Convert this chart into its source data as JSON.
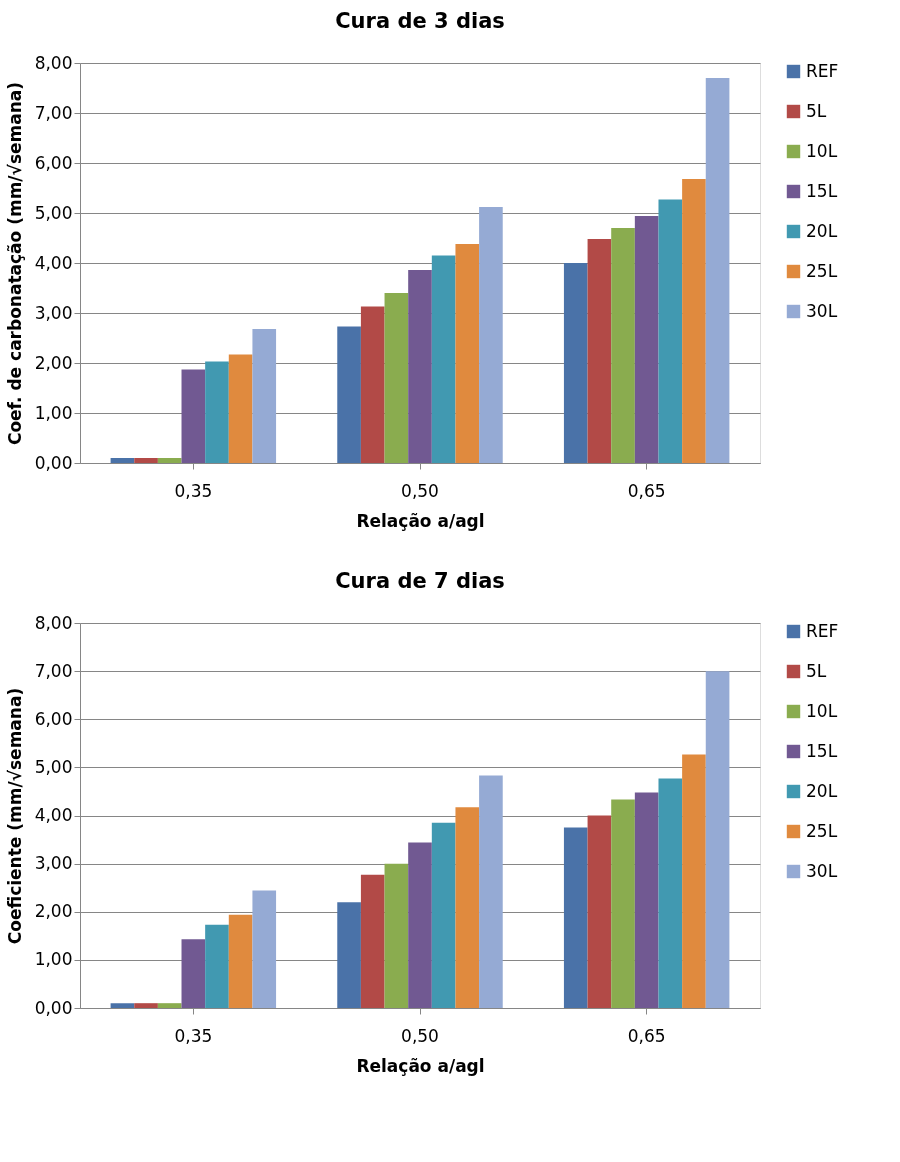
{
  "chart_data": [
    {
      "type": "bar",
      "title": "Cura de 3 dias",
      "xlabel": "Relação a/agl",
      "ylabel": "Coef. de carbonatação (mm/√semana)",
      "categories": [
        "0,35",
        "0,50",
        "0,65"
      ],
      "series": [
        {
          "name": "REF",
          "color": "#4a72a8",
          "values": [
            0.1,
            2.73,
            4.0
          ]
        },
        {
          "name": "5L",
          "color": "#b24a47",
          "values": [
            0.1,
            3.13,
            4.48
          ]
        },
        {
          "name": "10L",
          "color": "#8aac4f",
          "values": [
            0.1,
            3.4,
            4.7
          ]
        },
        {
          "name": "15L",
          "color": "#715992",
          "values": [
            1.87,
            3.86,
            4.94
          ]
        },
        {
          "name": "20L",
          "color": "#4199b1",
          "values": [
            2.03,
            4.15,
            5.27
          ]
        },
        {
          "name": "25L",
          "color": "#e08a3e",
          "values": [
            2.17,
            4.38,
            5.68
          ]
        },
        {
          "name": "30L",
          "color": "#95aad4",
          "values": [
            2.68,
            5.12,
            7.7
          ]
        }
      ],
      "ylim": [
        0,
        8
      ],
      "yticks": [
        {
          "value": 0,
          "label": "0,00"
        },
        {
          "value": 1,
          "label": "1,00"
        },
        {
          "value": 2,
          "label": "2,00"
        },
        {
          "value": 3,
          "label": "3,00"
        },
        {
          "value": 4,
          "label": "4,00"
        },
        {
          "value": 5,
          "label": "5,00"
        },
        {
          "value": 6,
          "label": "6,00"
        },
        {
          "value": 7,
          "label": "7,00"
        },
        {
          "value": 8,
          "label": "8,00"
        }
      ],
      "grid": "y",
      "legend": "right"
    },
    {
      "type": "bar",
      "title": "Cura de 7 dias",
      "xlabel": "Relação a/agl",
      "ylabel": "Coeficiente (mm/√semana)",
      "categories": [
        "0,35",
        "0,50",
        "0,65"
      ],
      "series": [
        {
          "name": "REF",
          "color": "#4a72a8",
          "values": [
            0.1,
            2.2,
            3.75
          ]
        },
        {
          "name": "5L",
          "color": "#b24a47",
          "values": [
            0.1,
            2.77,
            4.0
          ]
        },
        {
          "name": "10L",
          "color": "#8aac4f",
          "values": [
            0.1,
            3.0,
            4.33
          ]
        },
        {
          "name": "15L",
          "color": "#715992",
          "values": [
            1.43,
            3.44,
            4.48
          ]
        },
        {
          "name": "20L",
          "color": "#4199b1",
          "values": [
            1.73,
            3.85,
            4.77
          ]
        },
        {
          "name": "25L",
          "color": "#e08a3e",
          "values": [
            1.94,
            4.17,
            5.27
          ]
        },
        {
          "name": "30L",
          "color": "#95aad4",
          "values": [
            2.44,
            4.83,
            7.0
          ]
        }
      ],
      "ylim": [
        0,
        8
      ],
      "yticks": [
        {
          "value": 0,
          "label": "0,00"
        },
        {
          "value": 1,
          "label": "1,00"
        },
        {
          "value": 2,
          "label": "2,00"
        },
        {
          "value": 3,
          "label": "3,00"
        },
        {
          "value": 4,
          "label": "4,00"
        },
        {
          "value": 5,
          "label": "5,00"
        },
        {
          "value": 6,
          "label": "6,00"
        },
        {
          "value": 7,
          "label": "7,00"
        },
        {
          "value": 8,
          "label": "8,00"
        }
      ],
      "grid": "y",
      "legend": "right"
    }
  ]
}
